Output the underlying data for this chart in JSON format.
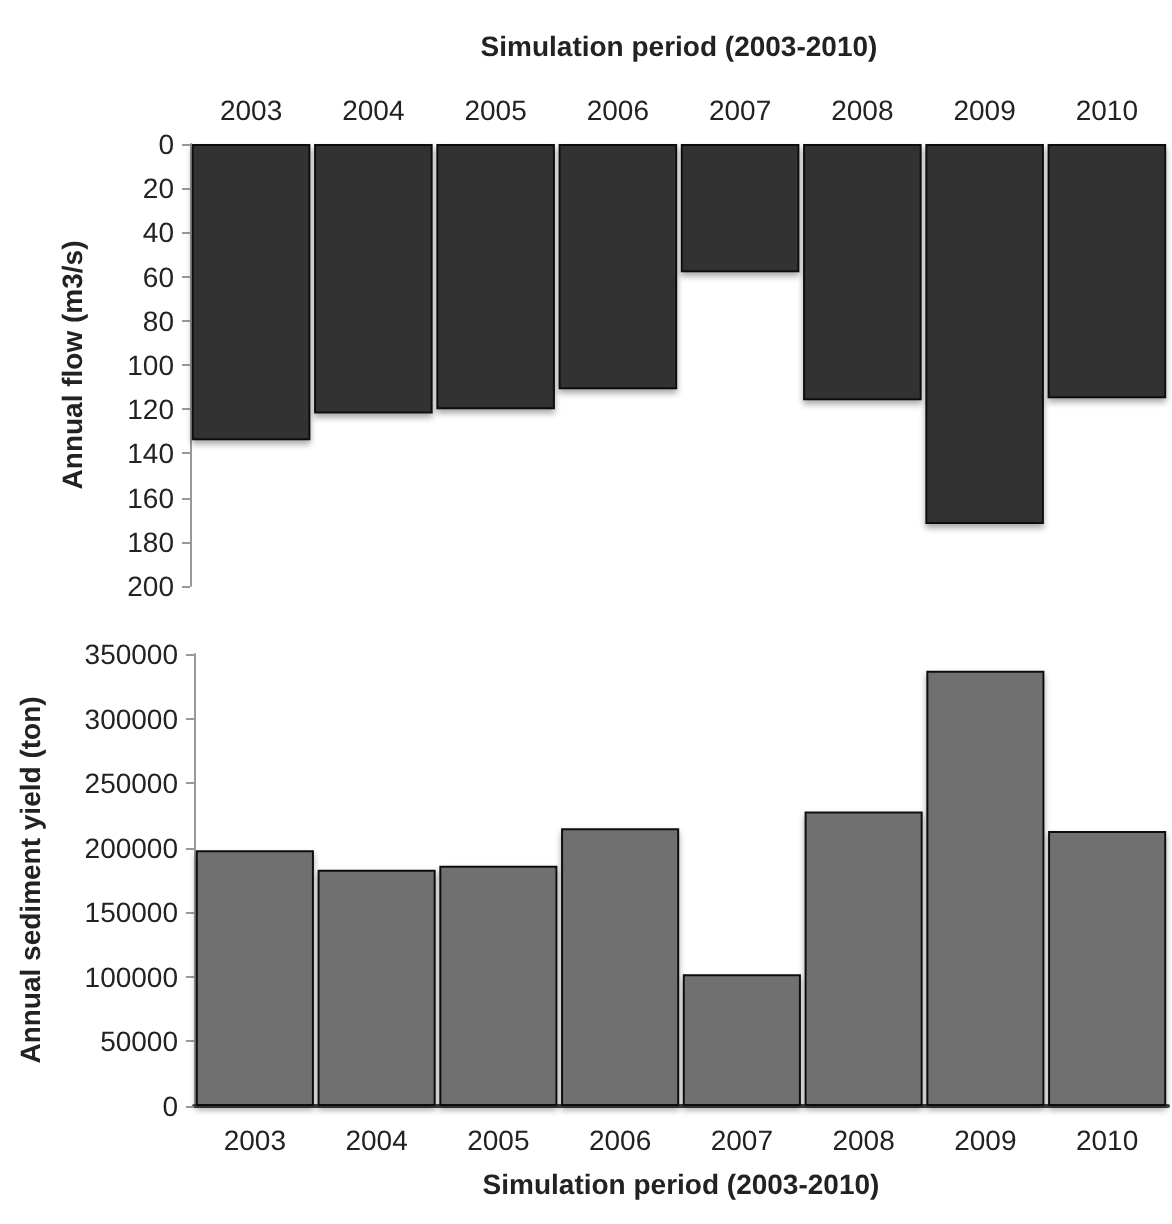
{
  "chart_data": [
    {
      "type": "bar",
      "x2label": "Simulation period (2003-2010)",
      "ylabel": "Annual flow (m3/s)",
      "categories": [
        "2003",
        "2004",
        "2005",
        "2006",
        "2007",
        "2008",
        "2009",
        "2010"
      ],
      "values": [
        134,
        122,
        120,
        111,
        58,
        116,
        172,
        115
      ],
      "color": "#333333",
      "ylim": [
        200,
        0
      ],
      "yticks": [
        0,
        20,
        40,
        60,
        80,
        100,
        120,
        140,
        160,
        180,
        200
      ]
    },
    {
      "type": "bar",
      "xlabel": "Simulation period (2003-2010)",
      "ylabel": "Annual sediment yield (ton)",
      "categories": [
        "2003",
        "2004",
        "2005",
        "2006",
        "2007",
        "2008",
        "2009",
        "2010"
      ],
      "values": [
        198000,
        183000,
        186000,
        215000,
        102000,
        228000,
        337000,
        213000
      ],
      "color": "#707070",
      "ylim": [
        0,
        350000
      ],
      "yticks": [
        0,
        50000,
        100000,
        150000,
        200000,
        250000,
        300000,
        350000
      ]
    }
  ]
}
